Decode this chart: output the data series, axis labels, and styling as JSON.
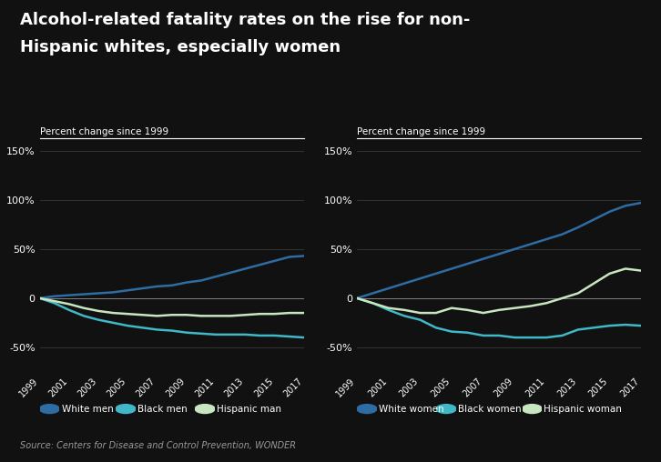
{
  "title_line1": "Alcohol-related fatality rates on the rise for non-",
  "title_line2": "Hispanic whites, especially women",
  "subtitle_left": "Percent change since 1999",
  "subtitle_right": "Percent change since 1999",
  "source": "Source: Centers for Disease and Control Prevention, WONDER",
  "bg_color": "#111111",
  "years": [
    1999,
    2000,
    2001,
    2002,
    2003,
    2004,
    2005,
    2006,
    2007,
    2008,
    2009,
    2010,
    2011,
    2012,
    2013,
    2014,
    2015,
    2016,
    2017
  ],
  "men": {
    "white": [
      0,
      2,
      3,
      4,
      5,
      6,
      8,
      10,
      12,
      13,
      16,
      18,
      22,
      26,
      30,
      34,
      38,
      42,
      43
    ],
    "black": [
      0,
      -5,
      -12,
      -18,
      -22,
      -25,
      -28,
      -30,
      -32,
      -33,
      -35,
      -36,
      -37,
      -37,
      -37,
      -38,
      -38,
      -39,
      -40
    ],
    "hispanic": [
      0,
      -3,
      -6,
      -10,
      -13,
      -15,
      -16,
      -17,
      -18,
      -17,
      -17,
      -18,
      -18,
      -18,
      -17,
      -16,
      -16,
      -15,
      -15
    ]
  },
  "women": {
    "white": [
      0,
      5,
      10,
      15,
      20,
      25,
      30,
      35,
      40,
      45,
      50,
      55,
      60,
      65,
      72,
      80,
      88,
      94,
      97
    ],
    "black": [
      0,
      -5,
      -12,
      -18,
      -22,
      -30,
      -34,
      -35,
      -38,
      -38,
      -40,
      -40,
      -40,
      -38,
      -32,
      -30,
      -28,
      -27,
      -28
    ],
    "hispanic": [
      0,
      -5,
      -10,
      -12,
      -15,
      -15,
      -10,
      -12,
      -15,
      -12,
      -10,
      -8,
      -5,
      0,
      5,
      15,
      25,
      30,
      28
    ]
  },
  "color_white": "#2e6da4",
  "color_black": "#40b8c8",
  "color_hispanic": "#c8e6c0",
  "ylim": [
    -75,
    160
  ],
  "yticks": [
    -50,
    0,
    50,
    100,
    150
  ],
  "ytick_labels": [
    "-50%",
    "0",
    "50%",
    "100%",
    "150%"
  ],
  "xtick_years": [
    1999,
    2001,
    2003,
    2005,
    2007,
    2009,
    2011,
    2013,
    2015,
    2017
  ],
  "legend_left": [
    [
      "#2e6da4",
      "White men"
    ],
    [
      "#40b8c8",
      "Black men"
    ],
    [
      "#c8e6c0",
      "Hispanic man"
    ]
  ],
  "legend_right": [
    [
      "#2e6da4",
      "White women"
    ],
    [
      "#40b8c8",
      "Black women"
    ],
    [
      "#c8e6c0",
      "Hispanic woman"
    ]
  ]
}
